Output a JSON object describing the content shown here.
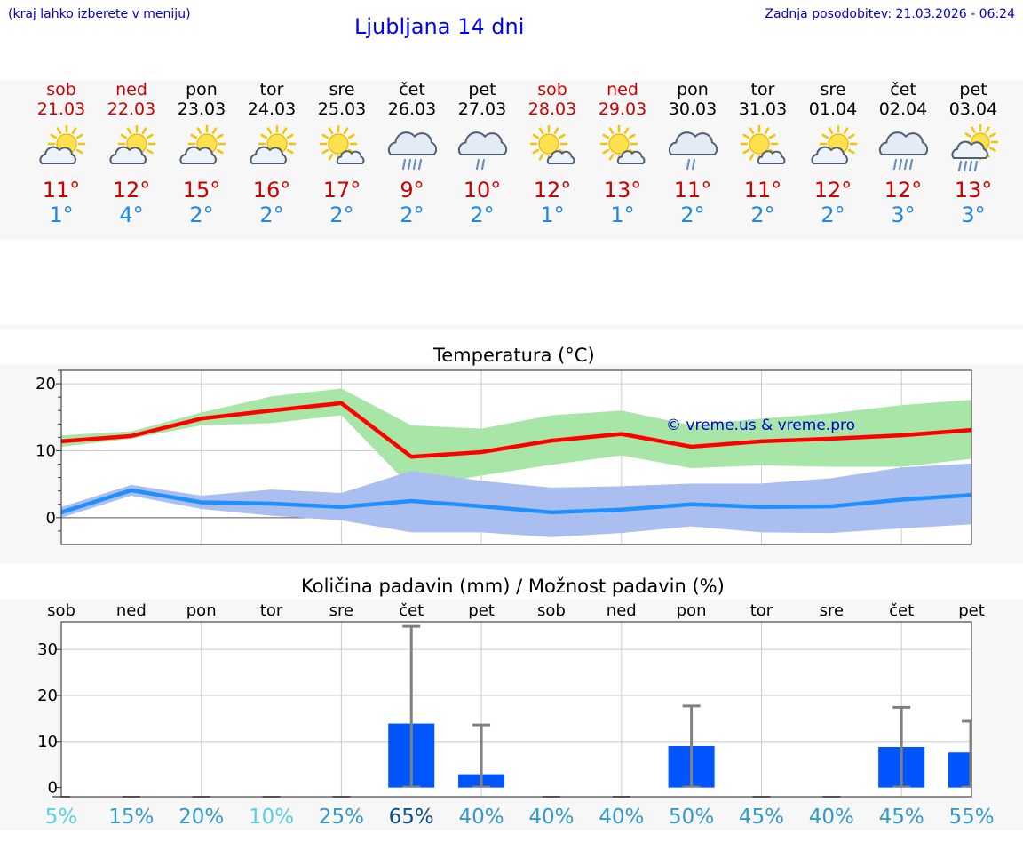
{
  "header": {
    "menu_note": "(kraj lahko izberete v meniju)",
    "title": "Ljubljana 14 dni",
    "last_update": "Zadnja posodobitev: 21.03.2026 - 06:24"
  },
  "days": [
    {
      "name": "sob",
      "date": "21.03",
      "weekend": true,
      "icon": "sun-cloud-icon",
      "tmax": "11°",
      "tmin": "1°"
    },
    {
      "name": "ned",
      "date": "22.03",
      "weekend": true,
      "icon": "sun-cloud-icon",
      "tmax": "12°",
      "tmin": "4°"
    },
    {
      "name": "pon",
      "date": "23.03",
      "weekend": false,
      "icon": "sun-cloud-icon",
      "tmax": "15°",
      "tmin": "2°"
    },
    {
      "name": "tor",
      "date": "24.03",
      "weekend": false,
      "icon": "sun-cloud-icon",
      "tmax": "16°",
      "tmin": "2°"
    },
    {
      "name": "sre",
      "date": "25.03",
      "weekend": false,
      "icon": "sun-small-cloud-icon",
      "tmax": "17°",
      "tmin": "2°"
    },
    {
      "name": "čet",
      "date": "26.03",
      "weekend": false,
      "icon": "rain-cloud-icon",
      "tmax": "9°",
      "tmin": "2°"
    },
    {
      "name": "pet",
      "date": "27.03",
      "weekend": false,
      "icon": "rain-cloud-light-icon",
      "tmax": "10°",
      "tmin": "2°"
    },
    {
      "name": "sob",
      "date": "28.03",
      "weekend": true,
      "icon": "sun-small-cloud-icon",
      "tmax": "12°",
      "tmin": "1°"
    },
    {
      "name": "ned",
      "date": "29.03",
      "weekend": true,
      "icon": "sun-small-cloud-icon",
      "tmax": "13°",
      "tmin": "1°"
    },
    {
      "name": "pon",
      "date": "30.03",
      "weekend": false,
      "icon": "rain-cloud-light-icon",
      "tmax": "11°",
      "tmin": "2°"
    },
    {
      "name": "tor",
      "date": "31.03",
      "weekend": false,
      "icon": "sun-small-cloud-icon",
      "tmax": "11°",
      "tmin": "2°"
    },
    {
      "name": "sre",
      "date": "01.04",
      "weekend": false,
      "icon": "sun-cloud-icon",
      "tmax": "12°",
      "tmin": "2°"
    },
    {
      "name": "čet",
      "date": "02.04",
      "weekend": false,
      "icon": "rain-cloud-icon",
      "tmax": "12°",
      "tmin": "3°"
    },
    {
      "name": "pet",
      "date": "03.04",
      "weekend": false,
      "icon": "sun-rain-cloud-icon",
      "tmax": "13°",
      "tmin": "3°"
    }
  ],
  "chart_data": [
    {
      "type": "line",
      "title": "Temperatura (°C)",
      "watermark": "© vreme.us & vreme.pro",
      "ylim": [
        -4,
        22
      ],
      "yticks": [
        0,
        10,
        20
      ],
      "x": [
        0,
        1,
        2,
        3,
        4,
        5,
        6,
        7,
        8,
        9,
        10,
        11,
        12,
        13
      ],
      "series": [
        {
          "name": "max",
          "color": "#ff0000",
          "values": [
            11.4,
            12.2,
            14.8,
            16,
            17.1,
            9.1,
            9.8,
            11.5,
            12.5,
            10.6,
            11.4,
            11.8,
            12.3,
            13.1
          ]
        },
        {
          "name": "min",
          "color": "#1e90ff",
          "values": [
            0.8,
            4.1,
            2.3,
            2.1,
            1.6,
            2.5,
            1.7,
            0.8,
            1.2,
            2,
            1.6,
            1.7,
            2.7,
            3.4
          ]
        }
      ],
      "bands": [
        {
          "name": "max-range",
          "color": "#a8e6a8",
          "lower": [
            10.6,
            11.8,
            13.8,
            14.1,
            15.3,
            4.5,
            6.3,
            7.9,
            9.3,
            7.4,
            7.8,
            7.6,
            7.6,
            8.8
          ],
          "upper": [
            12.3,
            12.9,
            15.7,
            18.1,
            19.3,
            13.8,
            13.3,
            15.3,
            16,
            13.8,
            14.8,
            15.6,
            16.8,
            17.6
          ]
        },
        {
          "name": "min-range",
          "color": "#aabff0",
          "lower": [
            0,
            3.3,
            1.3,
            0.3,
            -0.4,
            -2.2,
            -2.2,
            -2.9,
            -2.3,
            -1.3,
            -2.2,
            -2.3,
            -1.6,
            -1
          ]
        },
        {
          "name": "min-range-upper",
          "color": "#aabff0",
          "upper": [
            1.6,
            4.9,
            3.3,
            4.2,
            3.7,
            7,
            5.5,
            4.5,
            4.7,
            5.1,
            5.1,
            5.9,
            7.5,
            8.1
          ]
        }
      ]
    },
    {
      "type": "bar",
      "title": "Količina padavin (mm) / Možnost padavin (%)",
      "ylim": [
        -2,
        36
      ],
      "yticks": [
        0,
        10,
        20,
        30
      ],
      "categories": [
        "sob",
        "ned",
        "pon",
        "tor",
        "sre",
        "čet",
        "pet",
        "sob",
        "ned",
        "pon",
        "tor",
        "sre",
        "čet",
        "pet"
      ],
      "values": [
        0,
        0,
        0,
        0,
        0,
        13.9,
        2.9,
        0,
        0,
        9,
        0,
        0,
        8.8,
        7.6
      ],
      "error_high": [
        0,
        0,
        0,
        0,
        0,
        35,
        13.6,
        0,
        0,
        17.7,
        0,
        0,
        17.4,
        14.4
      ],
      "probabilities": [
        "5%",
        "15%",
        "20%",
        "10%",
        "25%",
        "65%",
        "40%",
        "40%",
        "40%",
        "50%",
        "45%",
        "40%",
        "45%",
        "55%"
      ],
      "prob_values": [
        5,
        15,
        20,
        10,
        25,
        65,
        40,
        40,
        40,
        50,
        45,
        40,
        45,
        55
      ],
      "bar_color": "#0055ff"
    }
  ]
}
